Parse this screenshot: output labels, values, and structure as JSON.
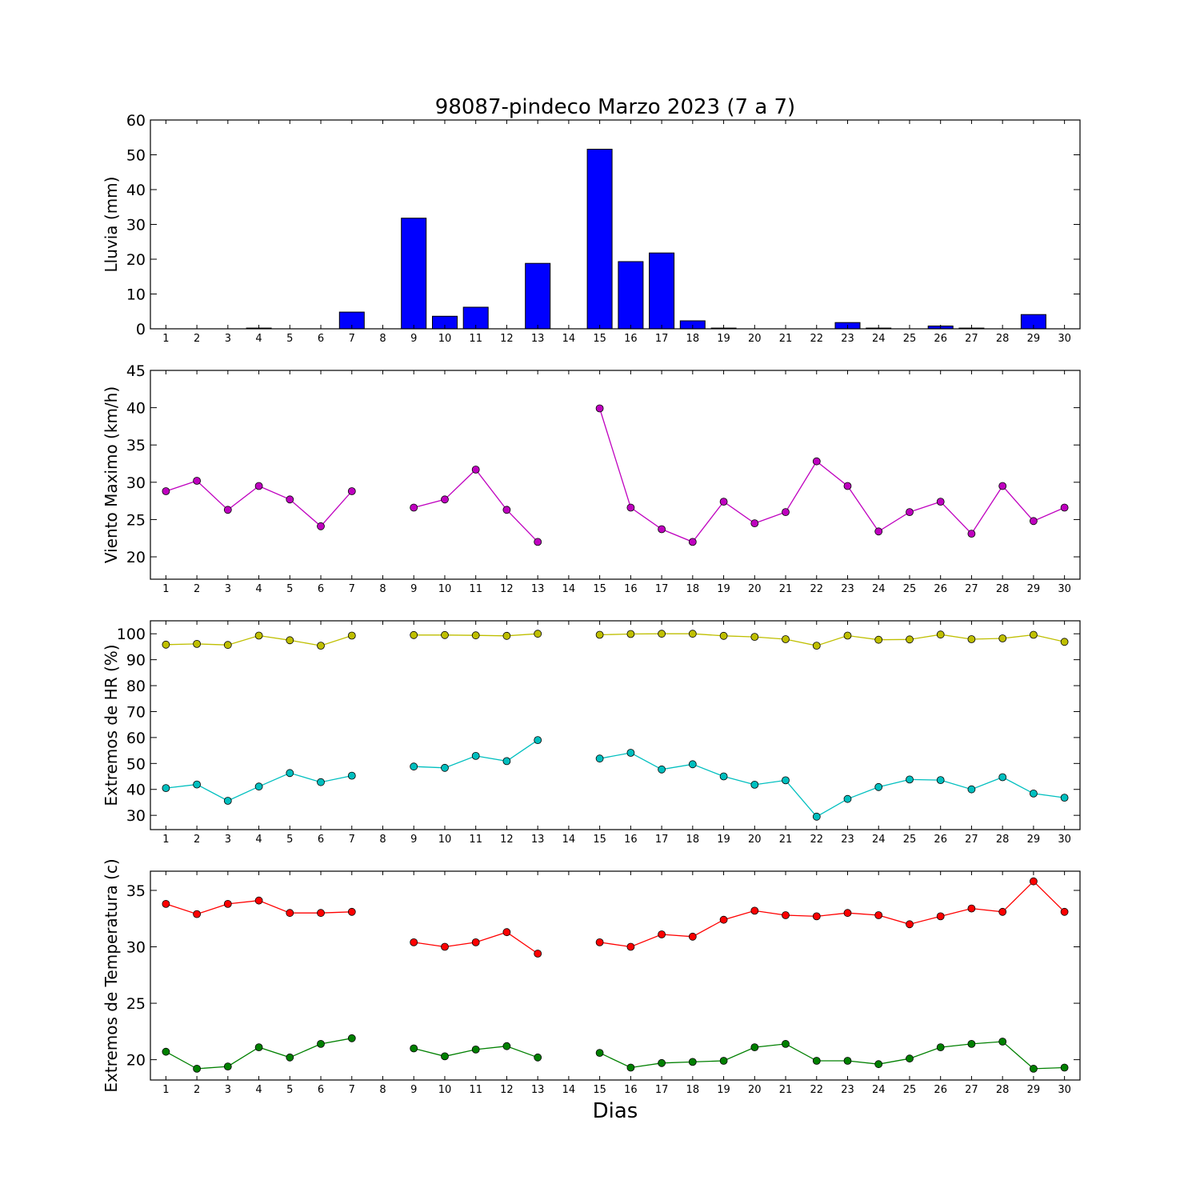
{
  "title": "98087-pindeco Marzo 2023  (7 a 7)",
  "xlabel": "Dias",
  "days": [
    1,
    2,
    3,
    4,
    5,
    6,
    7,
    8,
    9,
    10,
    11,
    12,
    13,
    14,
    15,
    16,
    17,
    18,
    19,
    20,
    21,
    22,
    23,
    24,
    25,
    26,
    27,
    28,
    29,
    30
  ],
  "chart_data": [
    {
      "type": "bar",
      "ylabel": "Lluvia (mm)",
      "ylim": [
        0,
        60
      ],
      "yticks": [
        0,
        10,
        20,
        30,
        40,
        50,
        60
      ],
      "xlim": [
        0.5,
        30.5
      ],
      "grid": false,
      "series": [
        {
          "color": "#0000ff",
          "values": [
            0,
            0,
            0,
            0.2,
            0,
            0,
            4.8,
            null,
            31.8,
            3.6,
            6.2,
            0,
            18.8,
            null,
            51.6,
            19.3,
            21.8,
            2.3,
            0.2,
            0,
            0,
            0,
            1.8,
            0.2,
            0,
            0.8,
            0.2,
            0,
            4.1,
            0
          ]
        }
      ]
    },
    {
      "type": "line",
      "ylabel": "Viento Maximo (km/h)",
      "ylim": [
        17,
        45
      ],
      "yticks": [
        20,
        25,
        30,
        35,
        40,
        45
      ],
      "xlim": [
        0.5,
        30.5
      ],
      "grid": false,
      "series": [
        {
          "color": "#bf00bf",
          "values": [
            28.8,
            30.2,
            26.3,
            29.5,
            27.7,
            24.1,
            28.8,
            null,
            26.6,
            27.7,
            31.7,
            26.3,
            22.0,
            null,
            39.9,
            26.6,
            23.7,
            22.0,
            27.4,
            24.5,
            26.0,
            32.8,
            29.5,
            23.4,
            26.0,
            27.4,
            23.1,
            29.5,
            24.8,
            26.6
          ]
        }
      ]
    },
    {
      "type": "line",
      "ylabel": "Extremos de HR (%)",
      "ylim": [
        24.5,
        105
      ],
      "yticks": [
        30,
        40,
        50,
        60,
        70,
        80,
        90,
        100
      ],
      "xlim": [
        0.5,
        30.5
      ],
      "grid": false,
      "series": [
        {
          "color": "#bfbf00",
          "values": [
            95.8,
            96.1,
            95.7,
            99.3,
            97.5,
            95.4,
            99.3,
            null,
            99.5,
            99.5,
            99.4,
            99.2,
            100,
            null,
            99.6,
            99.9,
            100,
            100,
            99.2,
            98.8,
            97.9,
            95.4,
            99.3,
            97.7,
            97.8,
            99.7,
            97.9,
            98.2,
            99.6,
            96.9
          ]
        },
        {
          "color": "#00bfbf",
          "values": [
            40.5,
            41.9,
            35.6,
            41.1,
            46.3,
            42.8,
            45.3,
            null,
            48.8,
            48.3,
            52.9,
            50.9,
            59.0,
            null,
            51.9,
            54.1,
            47.7,
            49.7,
            45.0,
            41.8,
            43.5,
            29.5,
            36.3,
            40.9,
            43.8,
            43.6,
            40.0,
            44.7,
            38.4,
            36.8
          ]
        }
      ]
    },
    {
      "type": "line",
      "ylabel": "Extremos de Temperatura (c)",
      "ylim": [
        18.2,
        36.7
      ],
      "yticks": [
        20,
        25,
        30,
        35
      ],
      "xlim": [
        0.5,
        30.5
      ],
      "grid": false,
      "series": [
        {
          "color": "#ff0000",
          "values": [
            33.8,
            32.9,
            33.8,
            34.1,
            33.0,
            33.0,
            33.1,
            null,
            30.4,
            30.0,
            30.4,
            31.3,
            29.4,
            null,
            30.4,
            30.0,
            31.1,
            30.9,
            32.4,
            33.2,
            32.8,
            32.7,
            33.0,
            32.8,
            32.0,
            32.7,
            33.4,
            33.1,
            35.8,
            33.1
          ]
        },
        {
          "color": "#008000",
          "values": [
            20.7,
            19.2,
            19.4,
            21.1,
            20.2,
            21.4,
            21.9,
            null,
            21.0,
            20.3,
            20.9,
            21.2,
            20.2,
            null,
            20.6,
            19.3,
            19.7,
            19.8,
            19.9,
            21.1,
            21.4,
            19.9,
            19.9,
            19.6,
            20.1,
            21.1,
            21.4,
            21.6,
            19.2,
            19.3
          ]
        }
      ]
    }
  ]
}
